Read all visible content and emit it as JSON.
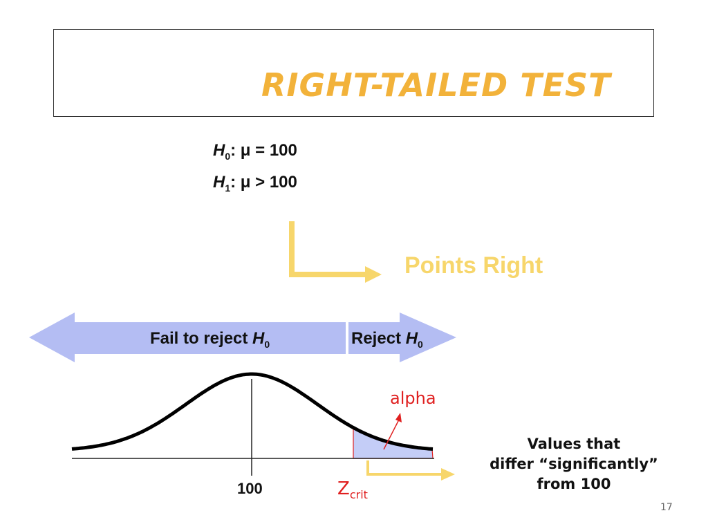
{
  "title": "RIGHT-TAILED TEST",
  "hypotheses": {
    "h0": {
      "symbol": "H",
      "sub": "0",
      "text": ": μ = 100"
    },
    "h1": {
      "symbol": "H",
      "sub": "1",
      "text": ": μ > 100"
    }
  },
  "direction_label": "Points Right",
  "regions": {
    "fail_to_reject": {
      "text": "Fail to reject ",
      "symbol": "H",
      "sub": "0"
    },
    "reject": {
      "text": "Reject ",
      "symbol": "H",
      "sub": "0"
    }
  },
  "curve": {
    "mean_label": "100",
    "alpha_label": "alpha",
    "critical_label": "Z",
    "critical_sub": "crit"
  },
  "note": [
    "Values that",
    "differ “significantly”",
    "from 100"
  ],
  "slide_number": "17",
  "colors": {
    "title": "#f2b23a",
    "arrow_yellow": "#f7d66b",
    "band_blue": "#b4bdf3",
    "shade_blue": "#c4cdf7",
    "red": "#e02020"
  }
}
